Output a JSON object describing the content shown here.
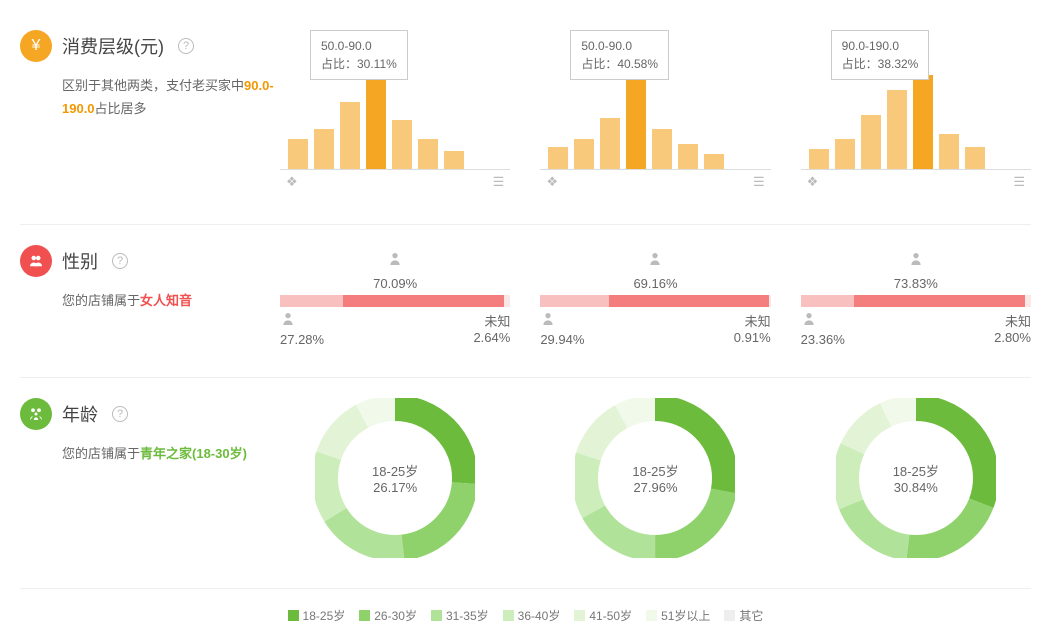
{
  "consumption": {
    "icon_bg": "#f5a623",
    "title": "消费层级(元)",
    "desc_prefix": "区别于其他两类，支付老买家中",
    "desc_highlight": "90.0-190.0",
    "desc_suffix": "占比居多",
    "bar_color": "#f8c97a",
    "bar_highlight": "#f5a623",
    "axis_left_icon": "❖",
    "axis_right_icon": "☰",
    "panels": [
      {
        "tooltip_line1": "50.0-90.0",
        "tooltip_line2": "占比：30.11%",
        "bars": [
          30,
          40,
          68,
          95,
          50,
          30,
          18
        ],
        "highlight_index": 3
      },
      {
        "tooltip_line1": "50.0-90.0",
        "tooltip_line2": "占比：40.58%",
        "bars": [
          22,
          30,
          52,
          95,
          40,
          25,
          15
        ],
        "highlight_index": 3
      },
      {
        "tooltip_line1": "90.0-190.0",
        "tooltip_line2": "占比：38.32%",
        "bars": [
          20,
          30,
          55,
          80,
          95,
          35,
          22
        ],
        "highlight_index": 4
      }
    ]
  },
  "gender": {
    "icon_bg": "#f05050",
    "title": "性别",
    "desc_prefix": "您的店铺属于",
    "desc_highlight": "女人知音",
    "female_icon": "👤",
    "male_icon": "👤",
    "unknown_label": "未知",
    "colors": {
      "female": "#f47d7d",
      "male": "#f9c0c0",
      "unknown": "#fce7e7"
    },
    "panels": [
      {
        "female": 70.09,
        "male": 27.28,
        "unknown": 2.64
      },
      {
        "female": 69.16,
        "male": 29.94,
        "unknown": 0.91
      },
      {
        "female": 73.83,
        "male": 23.36,
        "unknown": 2.8
      }
    ]
  },
  "age": {
    "icon_bg": "#6cbb3c",
    "title": "年龄",
    "desc_prefix": "您的店铺属于",
    "desc_highlight": "青年之家(18-30岁)",
    "center_label": "18-25岁",
    "slice_colors": [
      "#6cbb3c",
      "#8fd26b",
      "#b1e299",
      "#cdeebb",
      "#e3f4d6",
      "#f1f9eb"
    ],
    "legend": [
      "18-25岁",
      "26-30岁",
      "31-35岁",
      "36-40岁",
      "41-50岁",
      "51岁以上"
    ],
    "legend_extra": "其它",
    "panels": [
      {
        "center_pct": "26.17%",
        "slices": [
          26.17,
          22,
          18,
          14,
          12,
          7.83
        ]
      },
      {
        "center_pct": "27.96%",
        "slices": [
          27.96,
          22,
          17,
          13,
          12,
          8.04
        ]
      },
      {
        "center_pct": "30.84%",
        "slices": [
          30.84,
          21,
          17,
          13,
          11,
          7.16
        ]
      }
    ]
  }
}
